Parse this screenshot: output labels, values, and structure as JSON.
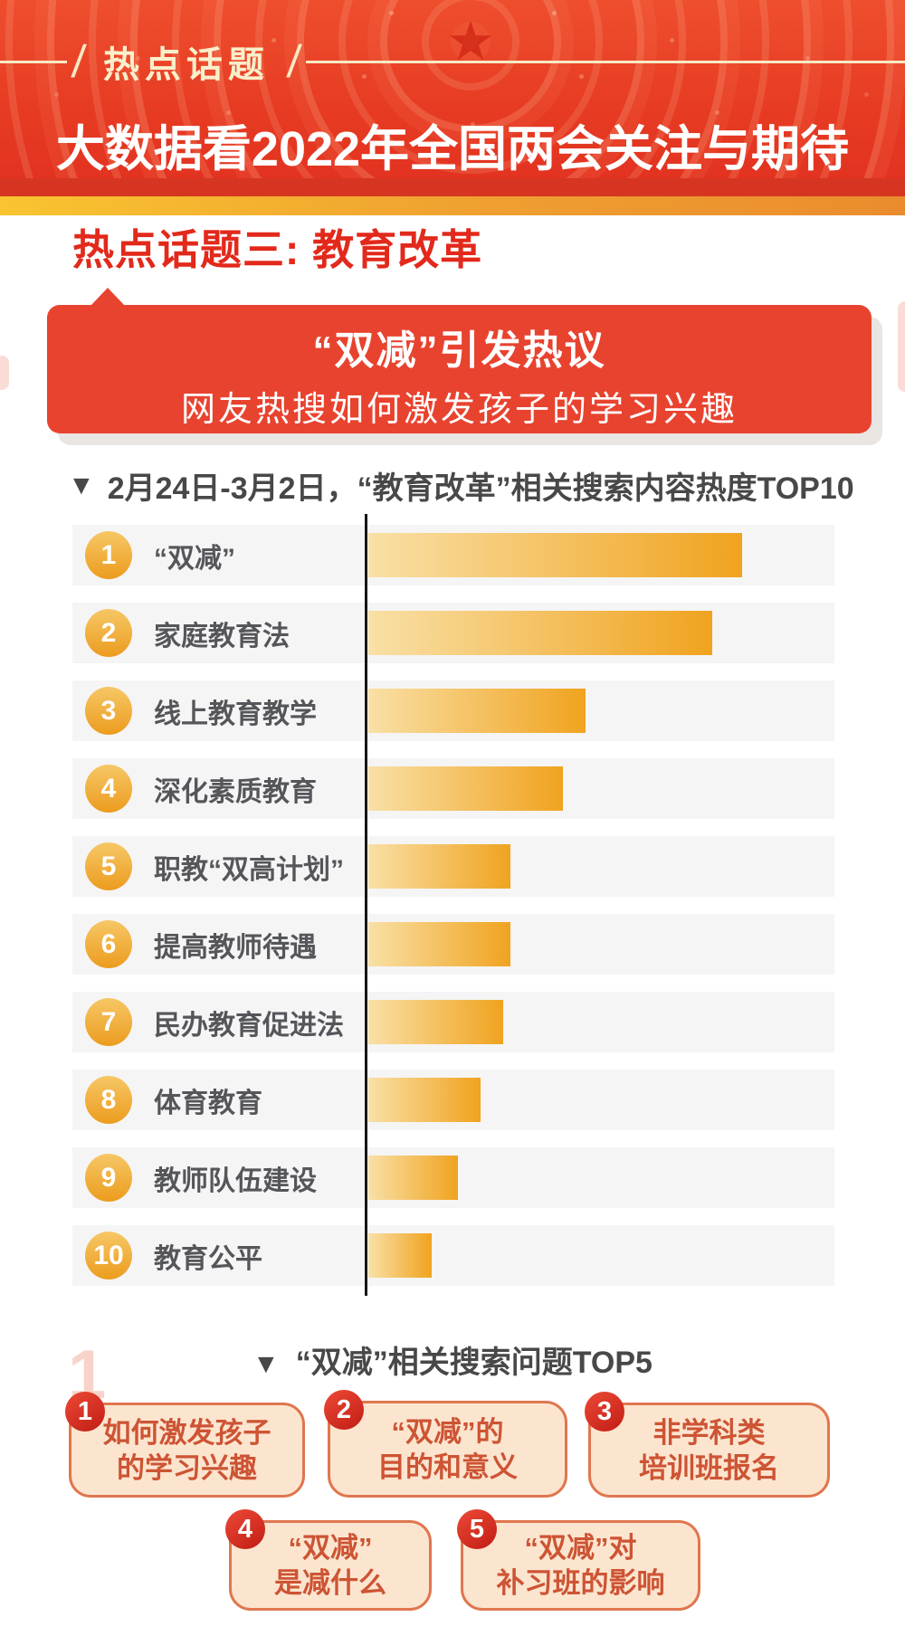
{
  "decor": {
    "triangle_marker": "▼",
    "star_icon": "★",
    "watermark": "1"
  },
  "header": {
    "badge": {
      "label": "热点话题",
      "slash": "/"
    },
    "title": "大数据看2022年全国两会关注与期待"
  },
  "section": {
    "title": "热点话题三: 教育改革"
  },
  "banner": {
    "title": "“双减”引发热议",
    "subtitle": "网友热搜如何激发孩子的学习兴趣"
  },
  "chart_data": {
    "type": "bar",
    "orientation": "horizontal",
    "title": "2月24日-3月2日，“教育改革”相关搜索内容热度TOP10",
    "categories": [
      "“双减”",
      "家庭教育法",
      "线上教育教学",
      "深化素质教育",
      "职教“双高计划”",
      "提高教师待遇",
      "民办教育促进法",
      "体育教育",
      "教师队伍建设",
      "教育公平"
    ],
    "ranks": [
      1,
      2,
      3,
      4,
      5,
      6,
      7,
      8,
      9,
      10
    ],
    "values": [
      100,
      92,
      58,
      52,
      38,
      38,
      36,
      30,
      24,
      17
    ],
    "value_note": "relative search heat estimated from bar lengths, top bar = 100",
    "xlabel": "",
    "ylabel": "",
    "grid": false,
    "legend": false,
    "bar_gradient": [
      "#f9e0a6",
      "#f0a31f"
    ],
    "axis_line_color": "#161616",
    "rank_badge_color": "#ee9f28",
    "row_background": "#f5f5f6",
    "label_color": "#55565a"
  },
  "top5": {
    "title": "“双减”相关搜索问题TOP5",
    "items": [
      {
        "rank": "1",
        "lines": [
          "如何激发孩子",
          "的学习兴趣"
        ]
      },
      {
        "rank": "2",
        "lines": [
          "“双减”的",
          "目的和意义"
        ]
      },
      {
        "rank": "3",
        "lines": [
          "非学科类",
          "培训班报名"
        ]
      },
      {
        "rank": "4",
        "lines": [
          "“双减”",
          "是减什么"
        ]
      },
      {
        "rank": "5",
        "lines": [
          "“双减”对",
          "补习班的影响"
        ]
      }
    ],
    "bubble_fill": "#fce5cf",
    "bubble_border": "#e0764f",
    "text_color": "#cd5434",
    "badge_color": "#c11c14"
  },
  "colors": {
    "header_red": "#e63a22",
    "gold_strip_left": "#f9c430",
    "gold_strip_right": "#ea8c2e",
    "section_red": "#e2291b",
    "banner_red": "#e8432f",
    "title_gray": "#48484a"
  }
}
